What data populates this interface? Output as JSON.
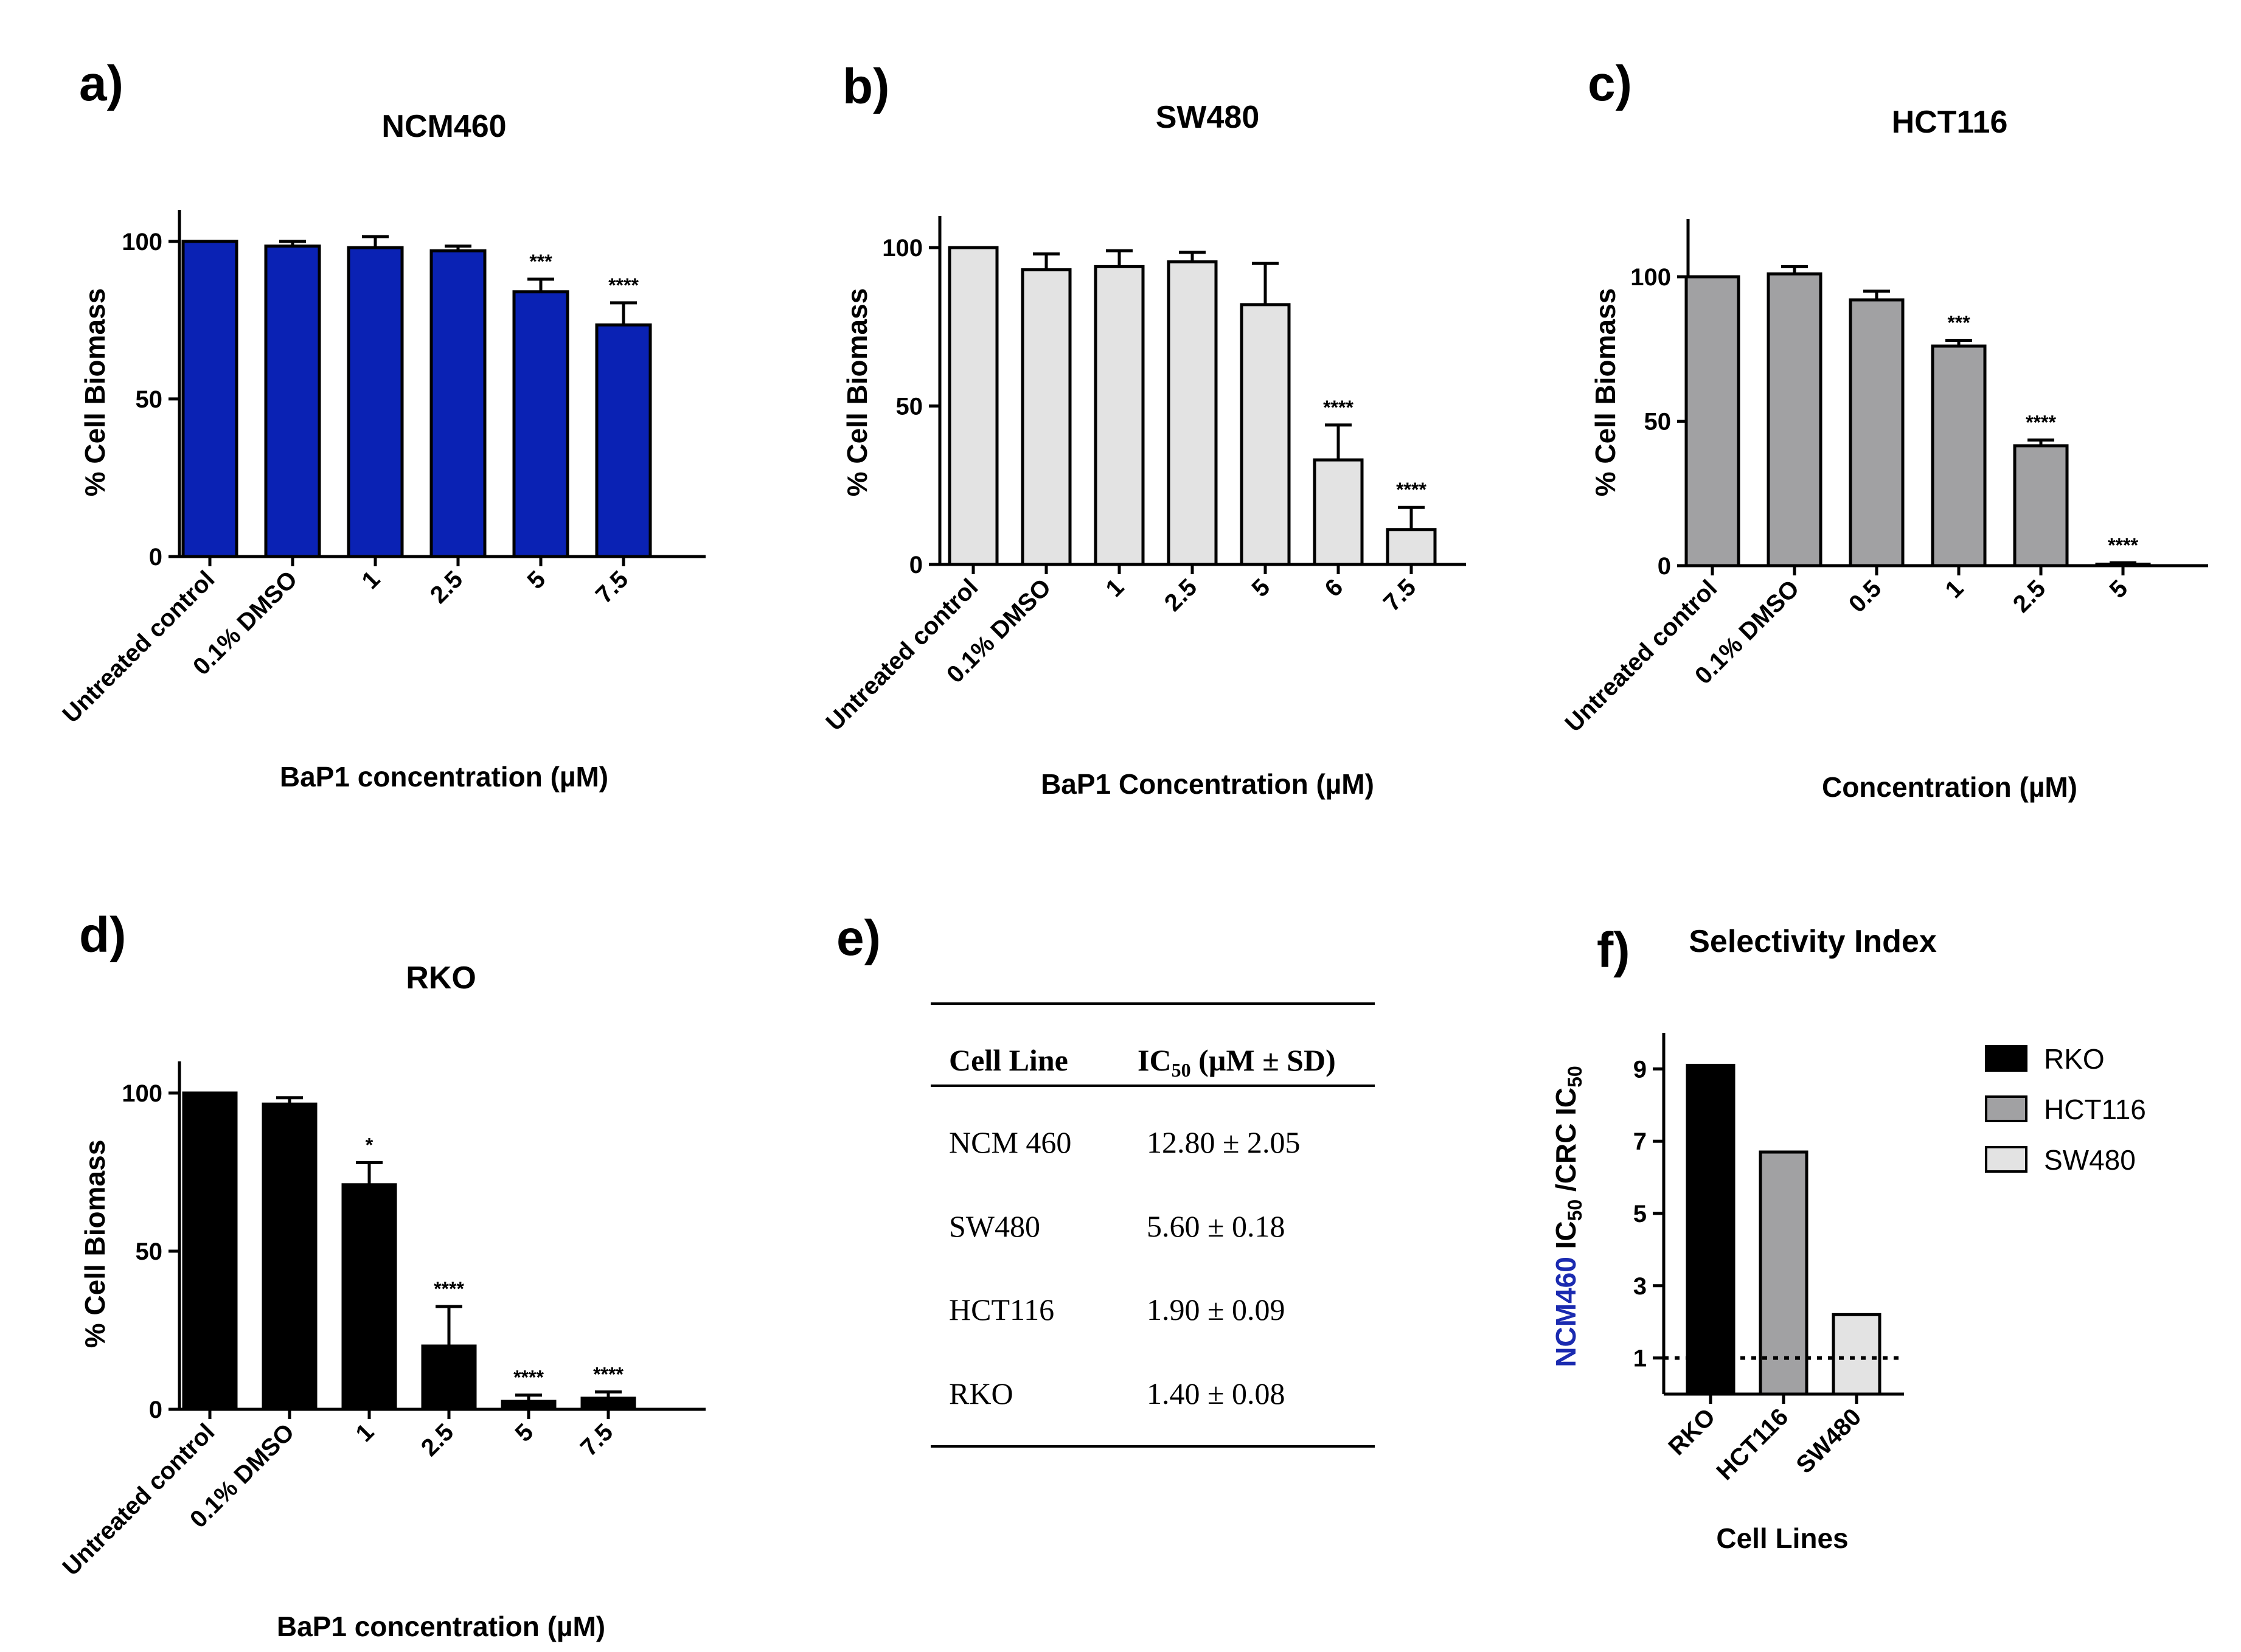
{
  "panels": {
    "a": "a)",
    "b": "b)",
    "c": "c)",
    "d": "d)",
    "e": "e)",
    "f": "f)"
  },
  "colors": {
    "ncm460": "#0a22b4",
    "sw480": "#e3e3e3",
    "hct116": "#a1a1a3",
    "rko": "#000000",
    "ncm460_text": "#1a2ab0"
  },
  "chart_data": [
    {
      "id": "a",
      "type": "bar",
      "title": "NCM460",
      "xlabel": "BaP1 concentration (µM)",
      "ylabel": "% Cell Biomass",
      "ylim": [
        0,
        110
      ],
      "yticks": [
        "0",
        "50",
        "100"
      ],
      "categories": [
        "Untreated control",
        "0.1% DMSO",
        "1",
        "2.5",
        "5",
        "7.5"
      ],
      "values": [
        100,
        98.5,
        98,
        97,
        84,
        73.5
      ],
      "errors": [
        0,
        1.5,
        3.5,
        1.5,
        4,
        7
      ],
      "significance": [
        "",
        "",
        "",
        "",
        "***",
        "****"
      ],
      "color": "#0a22b4"
    },
    {
      "id": "b",
      "type": "bar",
      "title": "SW480",
      "xlabel": "BaP1 Concentration (µM)",
      "ylabel": "% Cell Biomass",
      "ylim": [
        0,
        110
      ],
      "yticks": [
        "0",
        "50",
        "100"
      ],
      "categories": [
        "Untreated control",
        "0.1% DMSO",
        "1",
        "2.5",
        "5",
        "6",
        "7.5"
      ],
      "values": [
        100,
        93,
        94,
        95.5,
        82,
        33,
        11
      ],
      "errors": [
        0,
        5,
        5,
        3,
        13,
        11,
        7
      ],
      "significance": [
        "",
        "",
        "",
        "",
        "",
        "****",
        "****"
      ],
      "color": "#e3e3e3"
    },
    {
      "id": "c",
      "type": "bar",
      "title": "HCT116",
      "xlabel": "Concentration (µM)",
      "ylabel": "% Cell Biomass",
      "ylim": [
        0,
        120
      ],
      "yticks": [
        "0",
        "50",
        "100"
      ],
      "categories": [
        "Untreated control",
        "0.1% DMSO",
        "0.5",
        "1",
        "2.5",
        "5"
      ],
      "values": [
        100,
        101,
        92,
        76,
        41.5,
        0.5
      ],
      "errors": [
        0,
        2.5,
        3,
        2,
        2,
        0.5
      ],
      "significance": [
        "",
        "",
        "",
        "***",
        "****",
        "****"
      ],
      "color": "#a1a1a3"
    },
    {
      "id": "d",
      "type": "bar",
      "title": "RKO",
      "xlabel": "BaP1 concentration (µM)",
      "ylabel": "% Cell Biomass",
      "ylim": [
        0,
        110
      ],
      "yticks": [
        "0",
        "50",
        "100"
      ],
      "categories": [
        "Untreated control",
        "0.1% DMSO",
        "1",
        "2.5",
        "5",
        "7.5"
      ],
      "values": [
        100,
        96.5,
        71,
        20,
        2.5,
        3.5
      ],
      "errors": [
        0,
        2,
        7,
        12.5,
        2,
        2
      ],
      "significance": [
        "",
        "",
        "*",
        "****",
        "****",
        "****"
      ],
      "color": "#000000"
    },
    {
      "id": "e",
      "type": "table",
      "columns": [
        "Cell Line",
        "IC50 (µM ± SD)"
      ],
      "rows": [
        [
          "NCM 460",
          "12.80 ± 2.05"
        ],
        [
          "SW480",
          "5.60 ± 0.18"
        ],
        [
          "HCT116",
          "1.90 ± 0.09"
        ],
        [
          "RKO",
          "1.40 ± 0.08"
        ]
      ]
    },
    {
      "id": "f",
      "type": "bar",
      "title": "Selectivity Index",
      "xlabel": "Cell Lines",
      "ylabel_parts": [
        "NCM460",
        " IC50 /CRC IC50"
      ],
      "ylim": [
        0,
        10
      ],
      "yticks": [
        "1",
        "3",
        "5",
        "7",
        "9"
      ],
      "categories": [
        "RKO",
        "HCT116",
        "SW480"
      ],
      "values": [
        9.1,
        6.7,
        2.2
      ],
      "colors": [
        "#000000",
        "#a1a1a3",
        "#e3e3e3"
      ],
      "reference_line": 1,
      "legend": [
        "RKO",
        "HCT116",
        "SW480"
      ]
    }
  ]
}
